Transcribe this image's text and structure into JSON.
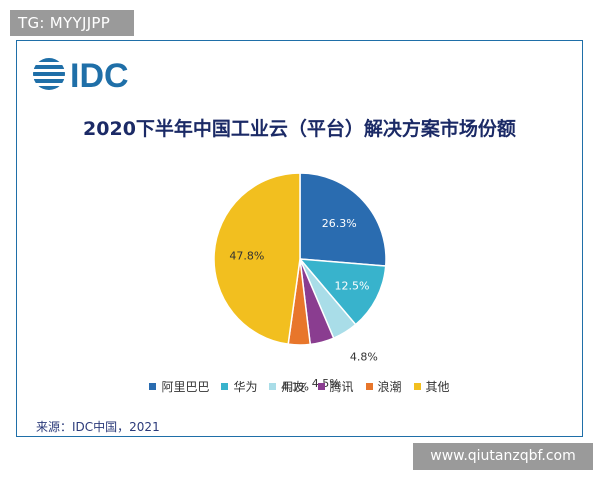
{
  "badge": {
    "text": "TG: MYYJJPP"
  },
  "logo": {
    "text": "IDC",
    "color": "#1f6fa8"
  },
  "chart_data": {
    "type": "pie",
    "title": "2020下半年中国工业云（平台）解决方案市场份额",
    "categories": [
      "阿里巴巴",
      "华为",
      "用友",
      "腾讯",
      "浪潮",
      "其他"
    ],
    "values": [
      26.3,
      12.5,
      4.8,
      4.5,
      4.1,
      47.8
    ],
    "labels": [
      "26.3%",
      "12.5%",
      "4.8%",
      "4.5%",
      "4.1%",
      "47.8%"
    ],
    "colors": [
      "#2a6cb0",
      "#38b3cc",
      "#a9dde8",
      "#8a3d90",
      "#e8762b",
      "#f2bf1f"
    ],
    "legend_position": "bottom"
  },
  "source": "来源：IDC中国，2021",
  "watermark": "www.qiutanzqbf.com"
}
